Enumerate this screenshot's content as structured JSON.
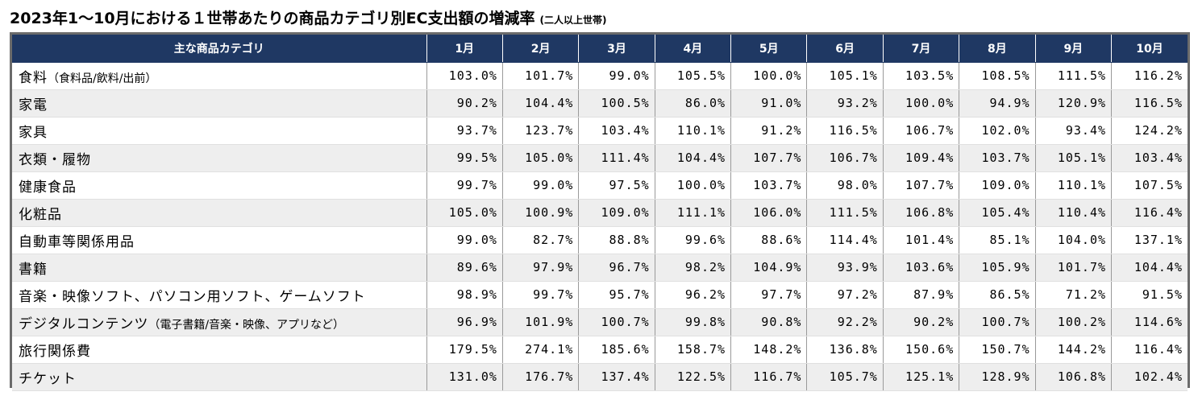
{
  "title": {
    "main": "2023年1〜10月における１世帯あたりの商品カテゴリ別EC支出額の増減率",
    "sub": "(二人以上世帯)"
  },
  "table": {
    "header_category": "主な商品カテゴリ",
    "months": [
      "1月",
      "2月",
      "3月",
      "4月",
      "5月",
      "6月",
      "7月",
      "8月",
      "9月",
      "10月"
    ],
    "rows": [
      {
        "category": "食料",
        "note": "（食料品/飲料/出前）",
        "values": [
          "103.0%",
          "101.7%",
          "99.0%",
          "105.5%",
          "100.0%",
          "105.1%",
          "103.5%",
          "108.5%",
          "111.5%",
          "116.2%"
        ]
      },
      {
        "category": "家電",
        "note": "",
        "values": [
          "90.2%",
          "104.4%",
          "100.5%",
          "86.0%",
          "91.0%",
          "93.2%",
          "100.0%",
          "94.9%",
          "120.9%",
          "116.5%"
        ]
      },
      {
        "category": "家具",
        "note": "",
        "values": [
          "93.7%",
          "123.7%",
          "103.4%",
          "110.1%",
          "91.2%",
          "116.5%",
          "106.7%",
          "102.0%",
          "93.4%",
          "124.2%"
        ]
      },
      {
        "category": "衣類・履物",
        "note": "",
        "values": [
          "99.5%",
          "105.0%",
          "111.4%",
          "104.4%",
          "107.7%",
          "106.7%",
          "109.4%",
          "103.7%",
          "105.1%",
          "103.4%"
        ]
      },
      {
        "category": "健康食品",
        "note": "",
        "values": [
          "99.7%",
          "99.0%",
          "97.5%",
          "100.0%",
          "103.7%",
          "98.0%",
          "107.7%",
          "109.0%",
          "110.1%",
          "107.5%"
        ]
      },
      {
        "category": "化粧品",
        "note": "",
        "values": [
          "105.0%",
          "100.9%",
          "109.0%",
          "111.1%",
          "106.0%",
          "111.5%",
          "106.8%",
          "105.4%",
          "110.4%",
          "116.4%"
        ]
      },
      {
        "category": "自動車等関係用品",
        "note": "",
        "values": [
          "99.0%",
          "82.7%",
          "88.8%",
          "99.6%",
          "88.6%",
          "114.4%",
          "101.4%",
          "85.1%",
          "104.0%",
          "137.1%"
        ]
      },
      {
        "category": "書籍",
        "note": "",
        "values": [
          "89.6%",
          "97.9%",
          "96.7%",
          "98.2%",
          "104.9%",
          "93.9%",
          "103.6%",
          "105.9%",
          "101.7%",
          "104.4%"
        ]
      },
      {
        "category": "音楽・映像ソフト、パソコン用ソフト、ゲームソフト",
        "note": "",
        "values": [
          "98.9%",
          "99.7%",
          "95.7%",
          "96.2%",
          "97.7%",
          "97.2%",
          "87.9%",
          "86.5%",
          "71.2%",
          "91.5%"
        ]
      },
      {
        "category": "デジタルコンテンツ",
        "note": "（電子書籍/音楽・映像、アプリなど）",
        "values": [
          "96.9%",
          "101.9%",
          "100.7%",
          "99.8%",
          "90.8%",
          "92.2%",
          "90.2%",
          "100.7%",
          "100.2%",
          "114.6%"
        ]
      },
      {
        "category": "旅行関係費",
        "note": "",
        "values": [
          "179.5%",
          "274.1%",
          "185.6%",
          "158.7%",
          "148.2%",
          "136.8%",
          "150.6%",
          "150.7%",
          "144.2%",
          "116.4%"
        ]
      },
      {
        "category": "チケット",
        "note": "",
        "values": [
          "131.0%",
          "176.7%",
          "137.4%",
          "122.5%",
          "116.7%",
          "105.7%",
          "125.1%",
          "128.9%",
          "106.8%",
          "102.4%"
        ]
      }
    ]
  },
  "colors": {
    "header_bg": "#1f3863",
    "header_text": "#ffffff",
    "stripe": "#eeeeee",
    "frame": "#6b6b6b"
  }
}
